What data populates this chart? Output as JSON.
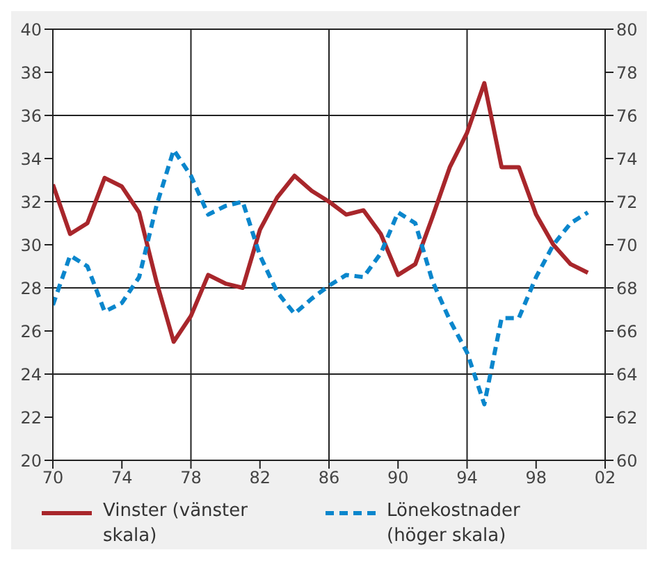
{
  "chart_data": {
    "type": "line",
    "x": [
      1970,
      1971,
      1972,
      1973,
      1974,
      1975,
      1976,
      1977,
      1978,
      1979,
      1980,
      1981,
      1982,
      1983,
      1984,
      1985,
      1986,
      1987,
      1988,
      1989,
      1990,
      1991,
      1992,
      1993,
      1994,
      1995,
      1996,
      1997,
      1998,
      1999,
      2000,
      2001
    ],
    "series": [
      {
        "name": "Vinster (vänster skala)",
        "color": "#a8262b",
        "line_style": "solid",
        "values": [
          32.8,
          30.5,
          31.0,
          33.1,
          32.7,
          31.5,
          28.3,
          25.5,
          26.7,
          28.6,
          28.2,
          28.0,
          30.7,
          32.2,
          33.2,
          32.5,
          32.0,
          31.4,
          31.6,
          30.5,
          28.6,
          29.1,
          31.3,
          33.6,
          35.2,
          37.5,
          33.6,
          33.6,
          31.4,
          30.0,
          29.1,
          28.7
        ]
      },
      {
        "name": "Lönekostnader (höger skala)",
        "color": "#0a86cc",
        "line_style": "dashed",
        "axis": "y2",
        "values": [
          67.2,
          69.5,
          69.0,
          66.9,
          67.3,
          68.5,
          71.8,
          74.4,
          73.2,
          71.4,
          71.8,
          72.0,
          69.5,
          67.8,
          66.8,
          67.5,
          68.1,
          68.6,
          68.5,
          69.6,
          71.5,
          71.0,
          68.3,
          66.5,
          65.0,
          62.6,
          66.6,
          66.6,
          68.5,
          70.0,
          71.0,
          71.5
        ]
      }
    ],
    "xlim": [
      1970,
      2002
    ],
    "xticks": [
      {
        "value": 1970,
        "label": "70"
      },
      {
        "value": 1974,
        "label": "74"
      },
      {
        "value": 1978,
        "label": "78"
      },
      {
        "value": 1982,
        "label": "82"
      },
      {
        "value": 1986,
        "label": "86"
      },
      {
        "value": 1990,
        "label": "90"
      },
      {
        "value": 1994,
        "label": "94"
      },
      {
        "value": 1998,
        "label": "98"
      },
      {
        "value": 2002,
        "label": "02"
      }
    ],
    "ylim": [
      20,
      40
    ],
    "yticks": [
      20,
      22,
      24,
      26,
      28,
      30,
      32,
      34,
      36,
      38,
      40
    ],
    "y2lim": [
      60,
      80
    ],
    "y2ticks": [
      60,
      62,
      64,
      66,
      68,
      70,
      72,
      74,
      76,
      78,
      80
    ],
    "grid": true,
    "legend": "bottom",
    "marker": "none"
  }
}
